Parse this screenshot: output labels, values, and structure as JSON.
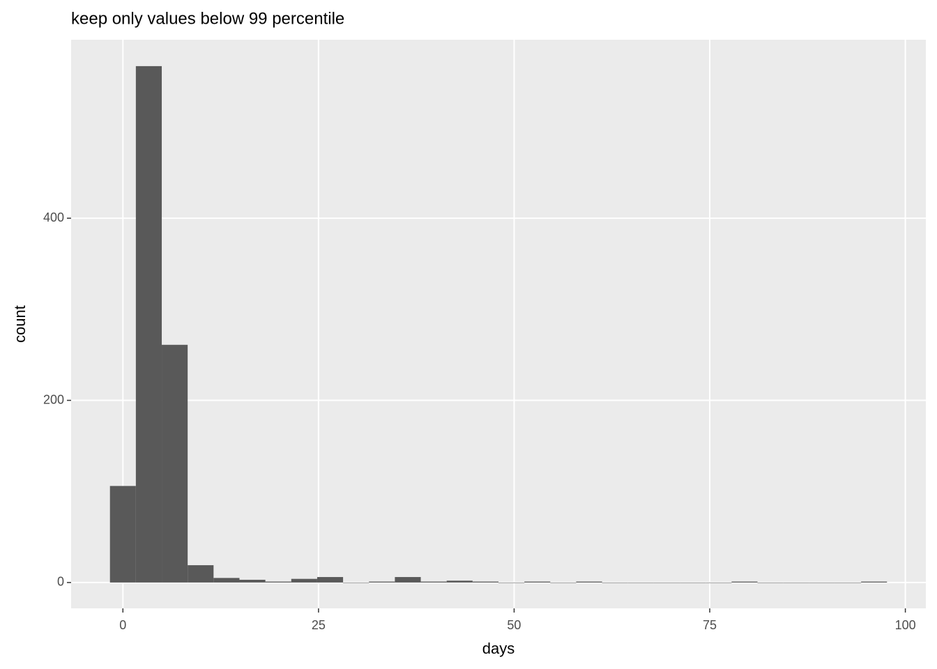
{
  "chart_data": {
    "type": "histogram",
    "title": "keep only values below 99 percentile",
    "x_label": "days",
    "y_label": "count",
    "bins": [
      -1.655,
      1.655,
      4.966,
      8.276,
      11.586,
      14.897,
      18.207,
      21.517,
      24.828,
      28.138,
      31.448,
      34.759,
      38.069,
      41.379,
      44.69,
      48.0,
      51.31,
      54.621,
      57.931,
      61.241,
      64.552,
      67.862,
      71.172,
      74.483,
      77.793,
      81.103,
      84.414,
      87.724,
      91.034,
      94.345,
      97.655
    ],
    "values": [
      106,
      567,
      261,
      19,
      5,
      3,
      1,
      4,
      6,
      0,
      1,
      6,
      1,
      2,
      1,
      0,
      1,
      0,
      1,
      0,
      0,
      0,
      0,
      0,
      1,
      0,
      0,
      0,
      0,
      1
    ],
    "color": "#595959",
    "xlim": [
      -6.62,
      102.62
    ],
    "xticks": [
      0,
      25,
      50,
      75,
      100
    ],
    "ylim": [
      -28.4,
      596
    ],
    "yticks": [
      0,
      200,
      400
    ],
    "grid": true
  }
}
